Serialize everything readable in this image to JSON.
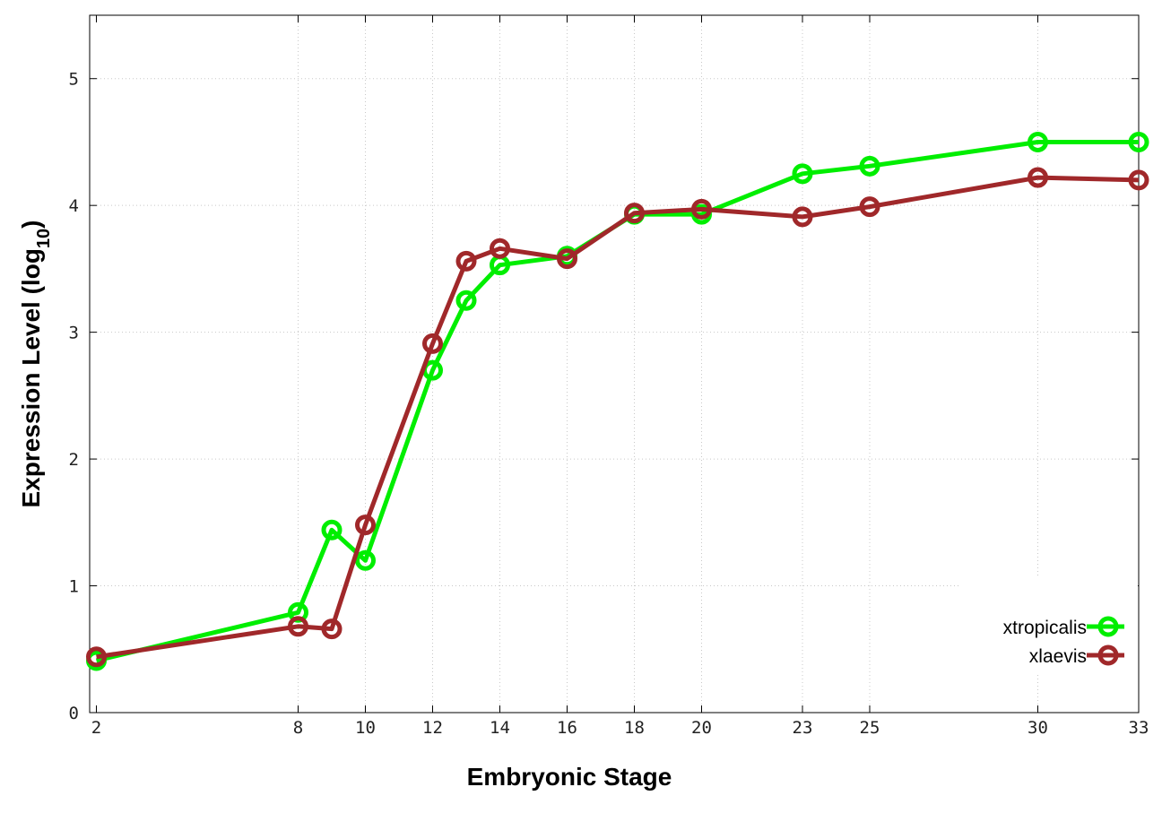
{
  "chart_data": {
    "type": "line",
    "xlabel": "Embryonic Stage",
    "ylabel": {
      "main": "Expression Level (log",
      "sub": "10",
      "close": ")"
    },
    "xlim": [
      1.8,
      33
    ],
    "ylim": [
      0,
      5.5
    ],
    "x_ticks": [
      2,
      8,
      10,
      12,
      14,
      16,
      18,
      20,
      23,
      25,
      30,
      33
    ],
    "y_ticks": [
      0,
      1,
      2,
      3,
      4,
      5
    ],
    "grid": true,
    "legend_position": "bottom-right",
    "series": [
      {
        "name": "xtropicalis",
        "color": "#00ee00",
        "points": [
          [
            2,
            0.41
          ],
          [
            8,
            0.79
          ],
          [
            9,
            1.44
          ],
          [
            10,
            1.2
          ],
          [
            12,
            2.7
          ],
          [
            13,
            3.25
          ],
          [
            14,
            3.53
          ],
          [
            16,
            3.6
          ],
          [
            18,
            3.93
          ],
          [
            20,
            3.93
          ],
          [
            23,
            4.25
          ],
          [
            25,
            4.31
          ],
          [
            30,
            4.5
          ],
          [
            33,
            4.5
          ]
        ]
      },
      {
        "name": "xlaevis",
        "color": "#a0282a",
        "points": [
          [
            2,
            0.44
          ],
          [
            8,
            0.68
          ],
          [
            9,
            0.66
          ],
          [
            10,
            1.48
          ],
          [
            12,
            2.91
          ],
          [
            13,
            3.56
          ],
          [
            14,
            3.66
          ],
          [
            16,
            3.58
          ],
          [
            18,
            3.94
          ],
          [
            20,
            3.97
          ],
          [
            23,
            3.91
          ],
          [
            25,
            3.99
          ],
          [
            30,
            4.22
          ],
          [
            33,
            4.2
          ]
        ]
      }
    ]
  }
}
